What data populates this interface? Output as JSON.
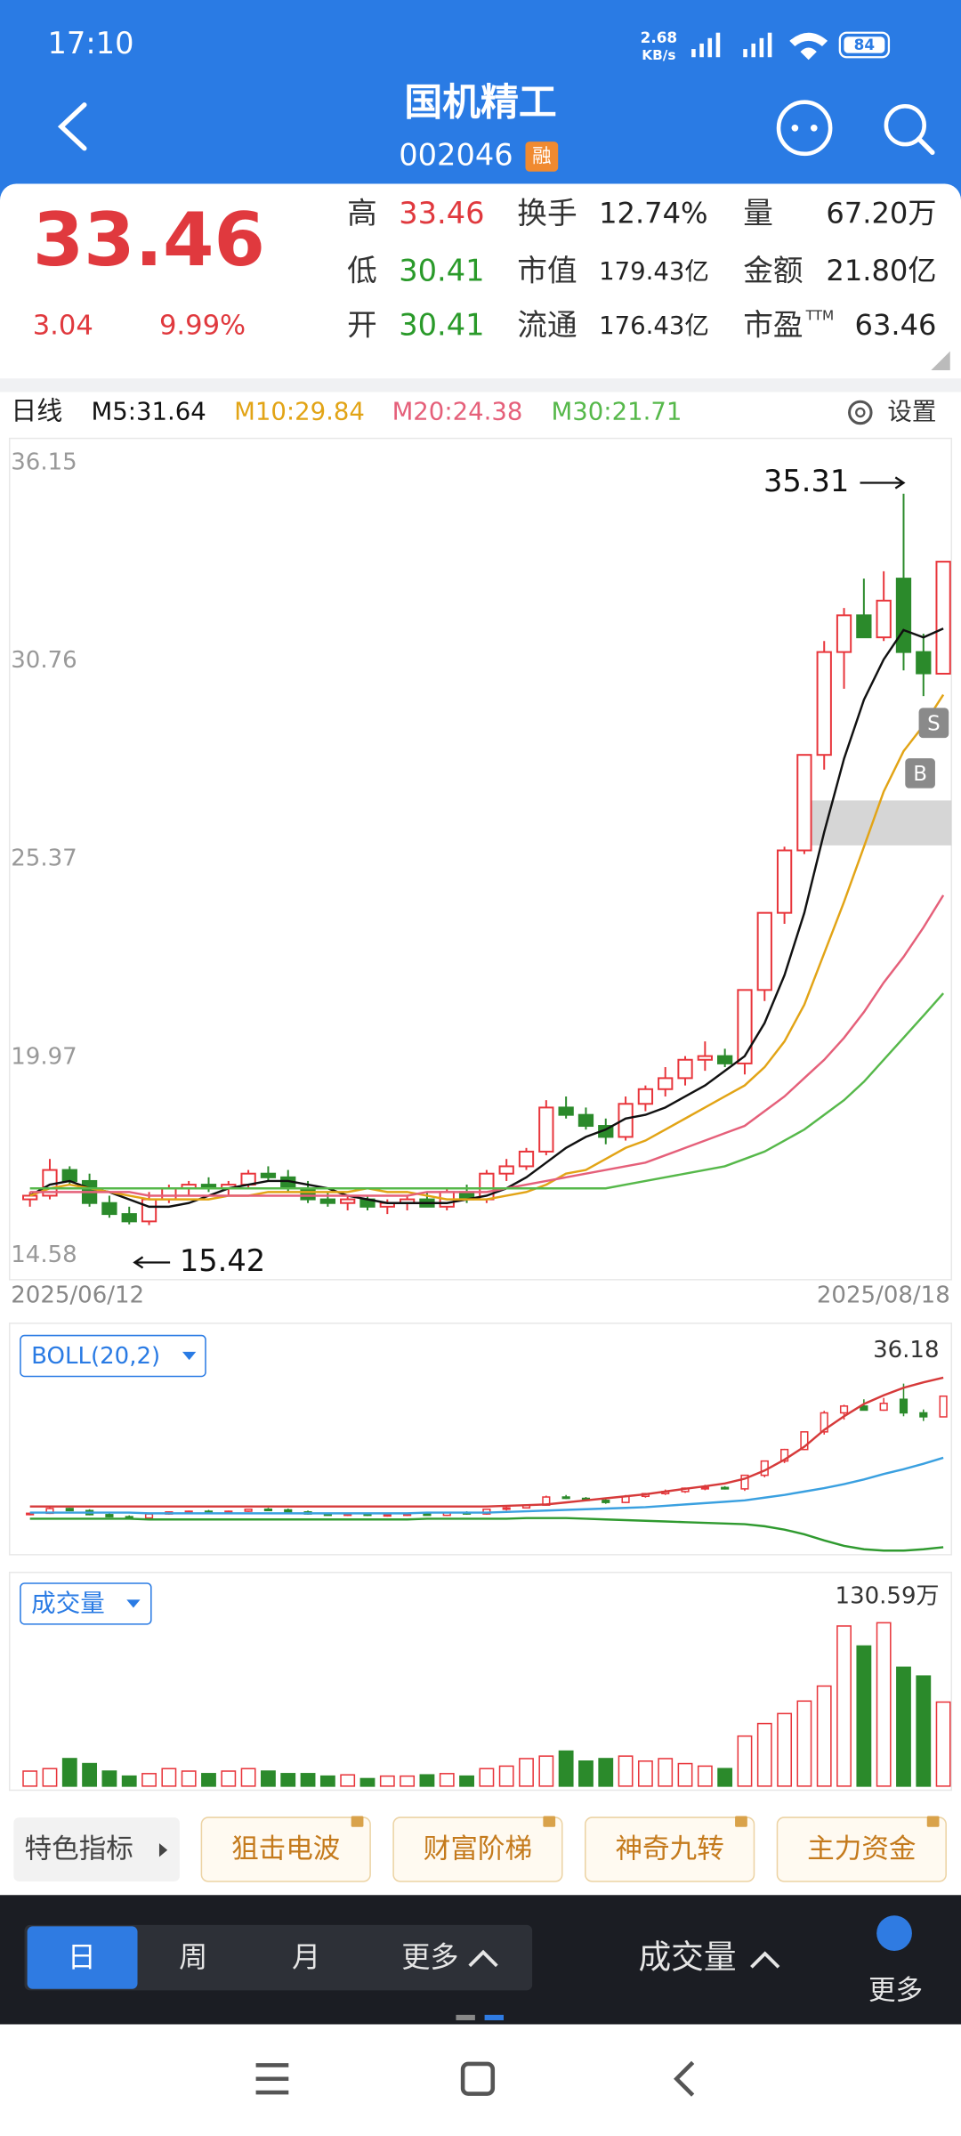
{
  "status_bar": {
    "time": "17:10",
    "speed": "2.68",
    "speed_unit": "KB/s",
    "battery": "84"
  },
  "header": {
    "title": "国机精工",
    "code": "002046",
    "tag": "融"
  },
  "quote": {
    "price": "33.46",
    "change": "3.04",
    "change_pct": "9.99%",
    "stats": [
      {
        "label": "高",
        "value": "33.46",
        "color": "#e0393e"
      },
      {
        "label": "换手",
        "value": "12.74%",
        "color": "#222222"
      },
      {
        "label": "量",
        "value": "67.20万",
        "color": "#222222"
      },
      {
        "label": "低",
        "value": "30.41",
        "color": "#2a9a2a"
      },
      {
        "label": "市值",
        "value": "179.43亿",
        "color": "#222222"
      },
      {
        "label": "金额",
        "value": "21.80亿",
        "color": "#222222"
      },
      {
        "label": "开",
        "value": "30.41",
        "color": "#2a9a2a"
      },
      {
        "label": "流通",
        "value": "176.43亿",
        "color": "#222222"
      },
      {
        "label": "市盈",
        "sup": "TTM",
        "value": "63.46",
        "color": "#222222"
      }
    ]
  },
  "settings": "设置",
  "indicator_tabs": {
    "label": "特色指标",
    "items": [
      "狙击电波",
      "财富阶梯",
      "神奇九转",
      "主力资金"
    ]
  },
  "toolbar": {
    "periods": [
      "日",
      "周",
      "月"
    ],
    "more": "更多",
    "indicator": "成交量",
    "more_right": "更多"
  },
  "chart_data": {
    "type": "candlestick",
    "period": "日线",
    "up_color": "#e8353b",
    "down_color": "#2b8a2b",
    "ylim": [
      14.58,
      36.15
    ],
    "yticks": [
      36.15,
      30.76,
      25.37,
      19.97,
      14.58
    ],
    "grid": false,
    "xticks": [
      {
        "value": 0,
        "label": "2025/06/12"
      },
      {
        "value": 46,
        "label": "2025/08/18"
      }
    ],
    "high_mark": 35.31,
    "low_mark": 15.42,
    "trade_marks": [
      "S",
      "B"
    ],
    "ohlc": [
      [
        16.1,
        16.3,
        15.9,
        16.2
      ],
      [
        16.2,
        17.2,
        16.1,
        16.9
      ],
      [
        16.9,
        17.0,
        16.5,
        16.6
      ],
      [
        16.6,
        16.8,
        15.9,
        16.0
      ],
      [
        16.0,
        16.2,
        15.6,
        15.7
      ],
      [
        15.7,
        15.9,
        15.42,
        15.5
      ],
      [
        15.5,
        16.3,
        15.4,
        16.1
      ],
      [
        16.1,
        16.5,
        16.0,
        16.4
      ],
      [
        16.4,
        16.6,
        16.2,
        16.5
      ],
      [
        16.5,
        16.7,
        16.3,
        16.4
      ],
      [
        16.4,
        16.6,
        16.2,
        16.5
      ],
      [
        16.5,
        16.9,
        16.4,
        16.8
      ],
      [
        16.8,
        17.0,
        16.6,
        16.7
      ],
      [
        16.7,
        16.9,
        16.3,
        16.4
      ],
      [
        16.4,
        16.6,
        16.0,
        16.1
      ],
      [
        16.1,
        16.3,
        15.9,
        16.0
      ],
      [
        16.0,
        16.2,
        15.8,
        16.1
      ],
      [
        16.1,
        16.2,
        15.8,
        15.9
      ],
      [
        15.9,
        16.1,
        15.7,
        16.0
      ],
      [
        16.0,
        16.2,
        15.8,
        16.1
      ],
      [
        16.1,
        16.3,
        15.9,
        15.9
      ],
      [
        15.9,
        16.4,
        15.8,
        16.3
      ],
      [
        16.3,
        16.5,
        16.0,
        16.1
      ],
      [
        16.1,
        16.9,
        16.0,
        16.8
      ],
      [
        16.8,
        17.2,
        16.6,
        17.0
      ],
      [
        17.0,
        17.5,
        16.9,
        17.4
      ],
      [
        17.4,
        18.8,
        17.3,
        18.6
      ],
      [
        18.6,
        18.9,
        18.3,
        18.4
      ],
      [
        18.4,
        18.6,
        18.0,
        18.1
      ],
      [
        18.1,
        18.3,
        17.6,
        17.8
      ],
      [
        17.8,
        18.9,
        17.7,
        18.7
      ],
      [
        18.7,
        19.2,
        18.5,
        19.1
      ],
      [
        19.1,
        19.7,
        18.9,
        19.4
      ],
      [
        19.4,
        20.0,
        19.2,
        19.9
      ],
      [
        19.9,
        20.4,
        19.6,
        20.0
      ],
      [
        20.0,
        20.2,
        19.7,
        19.8
      ],
      [
        19.8,
        21.8,
        19.5,
        21.8
      ],
      [
        21.8,
        23.9,
        21.5,
        23.9
      ],
      [
        23.9,
        25.7,
        23.6,
        25.6
      ],
      [
        25.6,
        28.2,
        25.5,
        28.2
      ],
      [
        28.2,
        31.3,
        27.8,
        31.0
      ],
      [
        31.0,
        32.2,
        30.0,
        32.0
      ],
      [
        32.0,
        33.0,
        31.4,
        31.4
      ],
      [
        31.4,
        33.2,
        31.3,
        32.4
      ],
      [
        33.0,
        35.31,
        30.5,
        31.0
      ],
      [
        31.0,
        31.5,
        29.8,
        30.42
      ],
      [
        30.41,
        33.46,
        30.41,
        33.46
      ]
    ],
    "ma_lines": [
      {
        "name": "M5:31.64",
        "color": "#111111",
        "values": [
          16.2,
          16.5,
          16.6,
          16.4,
          16.3,
          16.1,
          15.9,
          15.9,
          16.0,
          16.2,
          16.4,
          16.5,
          16.6,
          16.6,
          16.5,
          16.4,
          16.2,
          16.1,
          16.0,
          16.0,
          16.0,
          16.0,
          16.1,
          16.2,
          16.4,
          16.7,
          17.1,
          17.5,
          17.8,
          18.0,
          18.3,
          18.4,
          18.6,
          18.9,
          19.2,
          19.6,
          20.0,
          20.9,
          22.2,
          23.9,
          26.1,
          28.1,
          29.7,
          30.8,
          31.6,
          31.4,
          31.64
        ]
      },
      {
        "name": "M10:29.84",
        "color": "#e2a416",
        "values": [
          16.2,
          16.4,
          16.5,
          16.4,
          16.3,
          16.2,
          16.1,
          16.1,
          16.1,
          16.1,
          16.2,
          16.2,
          16.3,
          16.3,
          16.3,
          16.3,
          16.3,
          16.4,
          16.3,
          16.3,
          16.2,
          16.1,
          16.1,
          16.1,
          16.2,
          16.3,
          16.5,
          16.8,
          16.9,
          17.2,
          17.5,
          17.7,
          18.0,
          18.3,
          18.6,
          18.9,
          19.2,
          19.7,
          20.4,
          21.4,
          22.8,
          24.2,
          25.7,
          27.2,
          28.3,
          29.0,
          29.84
        ]
      },
      {
        "name": "M20:24.38",
        "color": "#e5607a",
        "values": [
          16.3,
          16.3,
          16.3,
          16.3,
          16.3,
          16.3,
          16.2,
          16.2,
          16.2,
          16.2,
          16.2,
          16.2,
          16.2,
          16.2,
          16.2,
          16.2,
          16.2,
          16.2,
          16.2,
          16.2,
          16.3,
          16.3,
          16.3,
          16.3,
          16.4,
          16.5,
          16.6,
          16.7,
          16.8,
          16.9,
          17.0,
          17.1,
          17.3,
          17.5,
          17.7,
          17.9,
          18.1,
          18.5,
          18.9,
          19.4,
          19.9,
          20.5,
          21.2,
          22.0,
          22.7,
          23.5,
          24.38
        ]
      },
      {
        "name": "M30:21.71",
        "color": "#56b84a",
        "values": [
          16.4,
          16.4,
          16.4,
          16.4,
          16.4,
          16.4,
          16.4,
          16.4,
          16.4,
          16.4,
          16.4,
          16.4,
          16.4,
          16.4,
          16.4,
          16.4,
          16.4,
          16.4,
          16.4,
          16.4,
          16.4,
          16.4,
          16.4,
          16.4,
          16.4,
          16.4,
          16.4,
          16.4,
          16.4,
          16.4,
          16.5,
          16.6,
          16.7,
          16.8,
          16.9,
          17.0,
          17.2,
          17.4,
          17.7,
          18.0,
          18.4,
          18.8,
          19.3,
          19.9,
          20.5,
          21.1,
          21.71
        ]
      }
    ],
    "boll": {
      "title": "BOLL(20,2)",
      "ylim": [
        10.5,
        36.18
      ],
      "yticks": [
        36.18
      ],
      "series": [
        {
          "color": "#d63a3a",
          "values": [
            17.2,
            17.2,
            17.2,
            17.2,
            17.2,
            17.2,
            17.2,
            17.2,
            17.2,
            17.2,
            17.2,
            17.2,
            17.2,
            17.2,
            17.2,
            17.2,
            17.2,
            17.2,
            17.2,
            17.2,
            17.2,
            17.2,
            17.2,
            17.2,
            17.3,
            17.4,
            17.5,
            17.8,
            18.1,
            18.4,
            18.7,
            19.0,
            19.4,
            19.8,
            20.2,
            20.6,
            21.3,
            22.5,
            24.1,
            26.0,
            28.5,
            30.5,
            32.3,
            33.6,
            34.7,
            35.5,
            36.18
          ]
        },
        {
          "color": "#3aa0e0",
          "values": [
            16.3,
            16.3,
            16.3,
            16.3,
            16.3,
            16.3,
            16.2,
            16.2,
            16.2,
            16.2,
            16.2,
            16.2,
            16.2,
            16.2,
            16.2,
            16.2,
            16.2,
            16.2,
            16.2,
            16.2,
            16.3,
            16.3,
            16.3,
            16.3,
            16.4,
            16.5,
            16.6,
            16.7,
            16.8,
            16.9,
            17.0,
            17.1,
            17.3,
            17.5,
            17.7,
            17.9,
            18.1,
            18.5,
            18.9,
            19.4,
            19.9,
            20.5,
            21.2,
            22.0,
            22.7,
            23.5,
            24.38
          ]
        },
        {
          "color": "#2f9a2f",
          "values": [
            15.4,
            15.4,
            15.4,
            15.4,
            15.4,
            15.4,
            15.3,
            15.3,
            15.3,
            15.3,
            15.3,
            15.3,
            15.3,
            15.3,
            15.3,
            15.3,
            15.3,
            15.3,
            15.3,
            15.3,
            15.4,
            15.4,
            15.4,
            15.4,
            15.4,
            15.5,
            15.5,
            15.5,
            15.4,
            15.3,
            15.2,
            15.1,
            15.0,
            14.9,
            14.8,
            14.7,
            14.6,
            14.3,
            13.8,
            13.1,
            12.2,
            11.4,
            10.9,
            10.7,
            10.7,
            10.9,
            11.2
          ]
        }
      ]
    },
    "volume": {
      "title": "成交量",
      "ylim": [
        0,
        130.59
      ],
      "yticks": [
        {
          "value": 130.59,
          "label": "130.59万"
        }
      ],
      "values": [
        12,
        14,
        22,
        18,
        12,
        8,
        10,
        14,
        12,
        10,
        12,
        14,
        12,
        10,
        10,
        8,
        9,
        6,
        8,
        8,
        9,
        10,
        8,
        14,
        16,
        22,
        24,
        28,
        20,
        22,
        24,
        20,
        22,
        18,
        16,
        14,
        40,
        50,
        58,
        68,
        80,
        128,
        112,
        130.59,
        95,
        88,
        67.2
      ]
    }
  }
}
